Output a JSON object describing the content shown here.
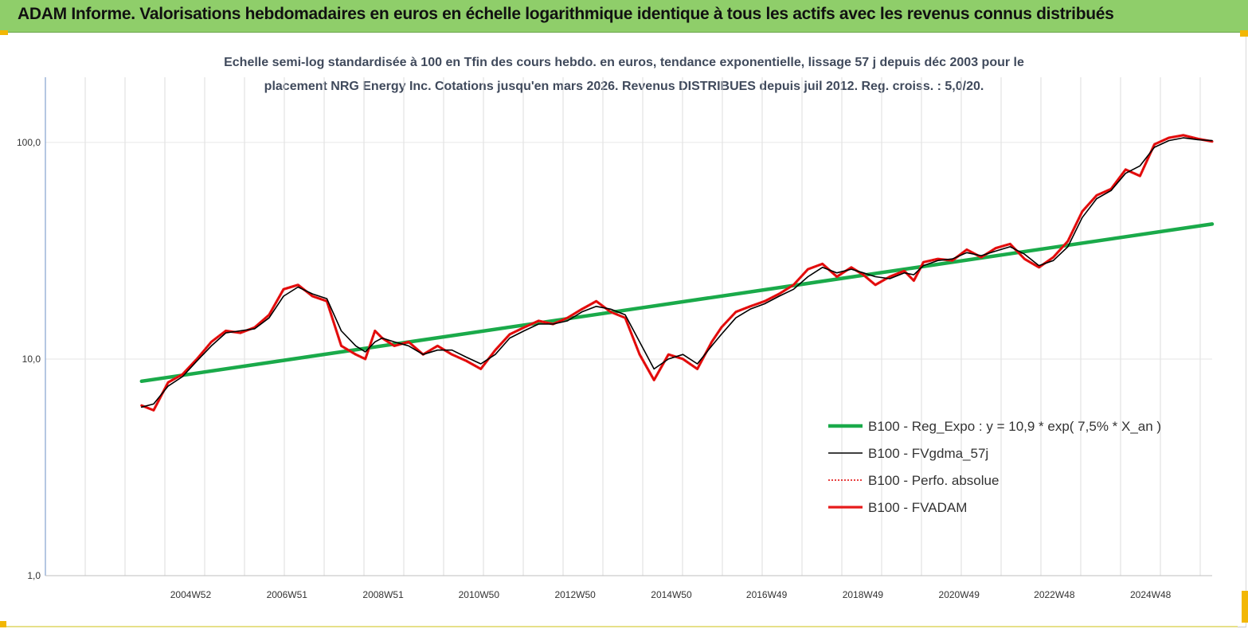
{
  "banner": {
    "title": "ADAM Informe. Valorisations hebdomadaires en euros en échelle logarithmique identique à tous les actifs avec les revenus connus distribués"
  },
  "chart_data": {
    "type": "line",
    "subtitle_line1": "Echelle semi-log standardisée à 100 en Tfin des cours hebdo. en euros, tendance exponentielle, lissage 57 j depuis déc 2003 pour le",
    "subtitle_line2": "placement NRG Energy Inc. Cotations jusqu'en mars 2026.  Revenus DISTRIBUES depuis juil 2012. Reg. croiss. : 5,0/20.",
    "y_scale": "log",
    "ylim": [
      1,
      200
    ],
    "y_ticks": [
      {
        "value": 1,
        "label": "1,0"
      },
      {
        "value": 10,
        "label": "10,0"
      },
      {
        "value": 100,
        "label": "100,0"
      }
    ],
    "xlim": [
      2001.95,
      2026.2
    ],
    "x_ticks": [
      {
        "value": 2004.97,
        "label": "2004W52"
      },
      {
        "value": 2006.97,
        "label": "2006W51"
      },
      {
        "value": 2008.97,
        "label": "2008W51"
      },
      {
        "value": 2010.96,
        "label": "2010W50"
      },
      {
        "value": 2012.96,
        "label": "2012W50"
      },
      {
        "value": 2014.96,
        "label": "2014W50"
      },
      {
        "value": 2016.94,
        "label": "2016W49"
      },
      {
        "value": 2018.94,
        "label": "2018W49"
      },
      {
        "value": 2020.94,
        "label": "2020W49"
      },
      {
        "value": 2022.92,
        "label": "2022W48"
      },
      {
        "value": 2024.92,
        "label": "2024W48"
      }
    ],
    "grid": "vertical",
    "legend_position": "bottom-right",
    "series": [
      {
        "name": "B100 - Reg_Expo : y = 10,9 * exp( 7,5% *  X_an )",
        "color": "#1aaa4a",
        "style": "thick",
        "x": [
          2003.95,
          2026.2
        ],
        "y": [
          7.9,
          42.0
        ]
      },
      {
        "name": "B100 - FVgdma_57j",
        "color": "#000000",
        "style": "thin",
        "x": [
          2003.95,
          2004.2,
          2004.5,
          2004.8,
          2005.1,
          2005.4,
          2005.7,
          2006.0,
          2006.3,
          2006.6,
          2006.9,
          2007.2,
          2007.5,
          2007.8,
          2008.1,
          2008.4,
          2008.6,
          2008.8,
          2008.95,
          2009.2,
          2009.5,
          2009.8,
          2010.1,
          2010.4,
          2010.7,
          2011.0,
          2011.3,
          2011.6,
          2011.9,
          2012.2,
          2012.5,
          2012.8,
          2013.1,
          2013.4,
          2013.7,
          2014.0,
          2014.3,
          2014.6,
          2014.9,
          2015.2,
          2015.5,
          2015.8,
          2016.0,
          2016.3,
          2016.6,
          2016.9,
          2017.2,
          2017.5,
          2017.8,
          2018.1,
          2018.4,
          2018.7,
          2018.95,
          2019.2,
          2019.5,
          2019.8,
          2020.0,
          2020.2,
          2020.5,
          2020.8,
          2021.1,
          2021.4,
          2021.7,
          2022.0,
          2022.3,
          2022.6,
          2022.9,
          2023.2,
          2023.5,
          2023.8,
          2024.1,
          2024.4,
          2024.7,
          2025.0,
          2025.3,
          2025.6,
          2025.9,
          2026.2
        ],
        "y": [
          6.0,
          6.2,
          7.5,
          8.3,
          9.8,
          11.5,
          13.2,
          13.5,
          13.8,
          15.5,
          19.5,
          21.5,
          20.0,
          19.0,
          13.5,
          11.5,
          10.8,
          12.0,
          12.5,
          12.0,
          11.5,
          10.5,
          11.0,
          11.0,
          10.2,
          9.5,
          10.5,
          12.5,
          13.5,
          14.5,
          14.5,
          15.0,
          16.5,
          17.5,
          17.0,
          16.0,
          12.0,
          9.0,
          10.0,
          10.5,
          9.5,
          11.5,
          13.0,
          15.5,
          17.0,
          18.0,
          19.5,
          21.0,
          24.0,
          26.5,
          25.0,
          26.0,
          25.0,
          24.0,
          23.5,
          25.0,
          24.5,
          27.0,
          28.5,
          29.0,
          31.0,
          30.0,
          31.5,
          33.0,
          30.5,
          27.0,
          28.5,
          33.0,
          45.0,
          55.0,
          60.0,
          72.0,
          78.0,
          95.0,
          102.0,
          105.0,
          103.0,
          102.0
        ]
      },
      {
        "name": "B100 - Perfo. absolue",
        "color": "#e00000",
        "style": "dotted",
        "x": [
          2003.95,
          2004.2,
          2004.5,
          2004.8,
          2005.1,
          2005.4,
          2005.7,
          2006.0,
          2006.3,
          2006.6,
          2006.9,
          2007.2,
          2007.5,
          2007.8,
          2008.1,
          2008.4,
          2008.6,
          2008.8,
          2008.95,
          2009.2,
          2009.5,
          2009.8,
          2010.1,
          2010.4,
          2010.7,
          2011.0,
          2011.3,
          2011.6,
          2011.9,
          2012.2,
          2012.5,
          2012.8,
          2013.1,
          2013.4,
          2013.7,
          2014.0,
          2014.3,
          2014.6,
          2014.9,
          2015.2,
          2015.5,
          2015.8,
          2016.0,
          2016.3,
          2016.6,
          2016.9,
          2017.2,
          2017.5,
          2017.8,
          2018.1,
          2018.4,
          2018.7,
          2018.95,
          2019.2,
          2019.5,
          2019.8,
          2020.0,
          2020.2,
          2020.5,
          2020.8,
          2021.1,
          2021.4,
          2021.7,
          2022.0,
          2022.3,
          2022.6,
          2022.9,
          2023.2,
          2023.5,
          2023.8,
          2024.1,
          2024.4,
          2024.7,
          2025.0,
          2025.3,
          2025.6,
          2025.9,
          2026.2
        ],
        "y": [
          6.1,
          5.8,
          7.8,
          8.5,
          10.0,
          12.0,
          13.5,
          13.2,
          14.0,
          16.0,
          21.0,
          22.0,
          19.5,
          18.5,
          11.5,
          10.5,
          10.0,
          13.5,
          12.5,
          11.5,
          12.0,
          10.5,
          11.5,
          10.5,
          9.8,
          9.0,
          11.0,
          13.0,
          14.0,
          15.0,
          14.5,
          15.5,
          17.0,
          18.5,
          16.5,
          15.5,
          10.5,
          8.0,
          10.5,
          10.0,
          9.0,
          12.0,
          14.0,
          16.5,
          17.5,
          18.5,
          20.0,
          22.0,
          26.0,
          27.5,
          24.0,
          26.5,
          24.5,
          22.0,
          24.0,
          25.5,
          23.0,
          28.0,
          29.0,
          28.5,
          32.0,
          29.5,
          32.5,
          34.0,
          29.0,
          26.5,
          29.5,
          35.0,
          48.0,
          57.0,
          61.0,
          75.0,
          70.0,
          98.0,
          105.0,
          108.0,
          104.0,
          101.0
        ]
      },
      {
        "name": "B100 - FVADAM",
        "color": "#e61c1c",
        "style": "thick",
        "x": [
          2003.95,
          2004.2,
          2004.5,
          2004.8,
          2005.1,
          2005.4,
          2005.7,
          2006.0,
          2006.3,
          2006.6,
          2006.9,
          2007.2,
          2007.5,
          2007.8,
          2008.1,
          2008.4,
          2008.6,
          2008.8,
          2008.95,
          2009.2,
          2009.5,
          2009.8,
          2010.1,
          2010.4,
          2010.7,
          2011.0,
          2011.3,
          2011.6,
          2011.9,
          2012.2,
          2012.5,
          2012.8,
          2013.1,
          2013.4,
          2013.7,
          2014.0,
          2014.3,
          2014.6,
          2014.9,
          2015.2,
          2015.5,
          2015.8,
          2016.0,
          2016.3,
          2016.6,
          2016.9,
          2017.2,
          2017.5,
          2017.8,
          2018.1,
          2018.4,
          2018.7,
          2018.95,
          2019.2,
          2019.5,
          2019.8,
          2020.0,
          2020.2,
          2020.5,
          2020.8,
          2021.1,
          2021.4,
          2021.7,
          2022.0,
          2022.3,
          2022.6,
          2022.9,
          2023.2,
          2023.5,
          2023.8,
          2024.1,
          2024.4,
          2024.7,
          2025.0,
          2025.3,
          2025.6,
          2025.9,
          2026.2
        ],
        "y": [
          6.1,
          5.8,
          7.8,
          8.5,
          10.0,
          12.0,
          13.5,
          13.2,
          14.0,
          16.0,
          21.0,
          22.0,
          19.5,
          18.5,
          11.5,
          10.5,
          10.0,
          13.5,
          12.5,
          11.5,
          12.0,
          10.5,
          11.5,
          10.5,
          9.8,
          9.0,
          11.0,
          13.0,
          14.0,
          15.0,
          14.5,
          15.5,
          17.0,
          18.5,
          16.5,
          15.5,
          10.5,
          8.0,
          10.5,
          10.0,
          9.0,
          12.0,
          14.0,
          16.5,
          17.5,
          18.5,
          20.0,
          22.0,
          26.0,
          27.5,
          24.0,
          26.5,
          24.5,
          22.0,
          24.0,
          25.5,
          23.0,
          28.0,
          29.0,
          28.5,
          32.0,
          29.5,
          32.5,
          34.0,
          29.0,
          26.5,
          29.5,
          35.0,
          48.0,
          57.0,
          61.0,
          75.0,
          70.0,
          98.0,
          105.0,
          108.0,
          104.0,
          101.0
        ]
      }
    ]
  }
}
